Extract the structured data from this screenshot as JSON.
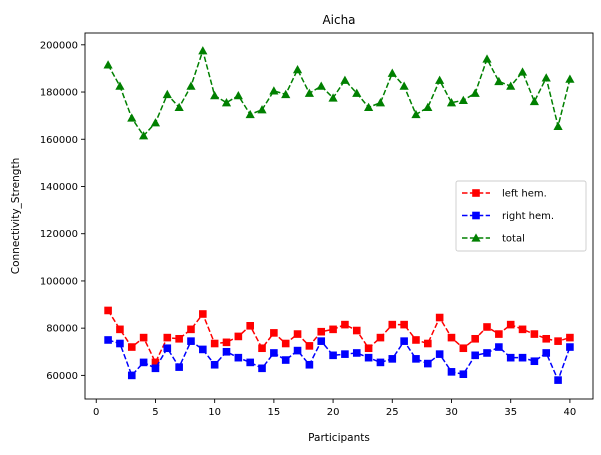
{
  "chart_data": {
    "type": "line",
    "title": "Aicha",
    "xlabel": "Participants",
    "ylabel": "Connectivity_Strength",
    "xlim": [
      -0.95,
      41.95
    ],
    "ylim": [
      50000,
      205000
    ],
    "xticks": [
      0,
      5,
      10,
      15,
      20,
      25,
      30,
      35,
      40
    ],
    "yticks": [
      60000,
      80000,
      100000,
      120000,
      140000,
      160000,
      180000,
      200000
    ],
    "grid": false,
    "legend_position": "center-right",
    "x": [
      1,
      2,
      3,
      4,
      5,
      6,
      7,
      8,
      9,
      10,
      11,
      12,
      13,
      14,
      15,
      16,
      17,
      18,
      19,
      20,
      21,
      22,
      23,
      24,
      25,
      26,
      27,
      28,
      29,
      30,
      31,
      32,
      33,
      34,
      35,
      36,
      37,
      38,
      39,
      40
    ],
    "series": [
      {
        "name": "left hem.",
        "color": "#ff0000",
        "marker": "square",
        "values": [
          87500,
          79500,
          72000,
          76000,
          65500,
          76000,
          75500,
          79500,
          86000,
          73500,
          74000,
          76500,
          81000,
          71500,
          78000,
          73500,
          77500,
          72500,
          78500,
          79500,
          81500,
          79000,
          71500,
          76000,
          81500,
          81500,
          75000,
          73500,
          84500,
          76000,
          71500,
          75500,
          80500,
          77500,
          81500,
          79500,
          77500,
          75500,
          74500,
          76000
        ]
      },
      {
        "name": "right hem.",
        "color": "#0000ff",
        "marker": "square",
        "values": [
          75000,
          73500,
          60000,
          65500,
          63000,
          71500,
          63500,
          74500,
          71000,
          64500,
          70000,
          67500,
          65500,
          63000,
          69500,
          66500,
          70500,
          64500,
          74500,
          68500,
          69000,
          69500,
          67500,
          65500,
          67000,
          74500,
          67000,
          65000,
          69000,
          61500,
          60500,
          68500,
          69500,
          72000,
          67500,
          67500,
          66000,
          69500,
          58000,
          72000
        ]
      },
      {
        "name": "total",
        "color": "#008000",
        "marker": "triangle",
        "values": [
          191500,
          182500,
          169000,
          161500,
          167000,
          179000,
          173500,
          182500,
          197500,
          178500,
          175500,
          178500,
          170500,
          172500,
          180500,
          179000,
          189500,
          179500,
          182500,
          177500,
          185000,
          179500,
          173500,
          175500,
          188000,
          182500,
          170500,
          173500,
          185000,
          175500,
          176500,
          179500,
          194000,
          184500,
          182500,
          188500,
          176000,
          186000,
          165500,
          185500
        ]
      }
    ]
  }
}
